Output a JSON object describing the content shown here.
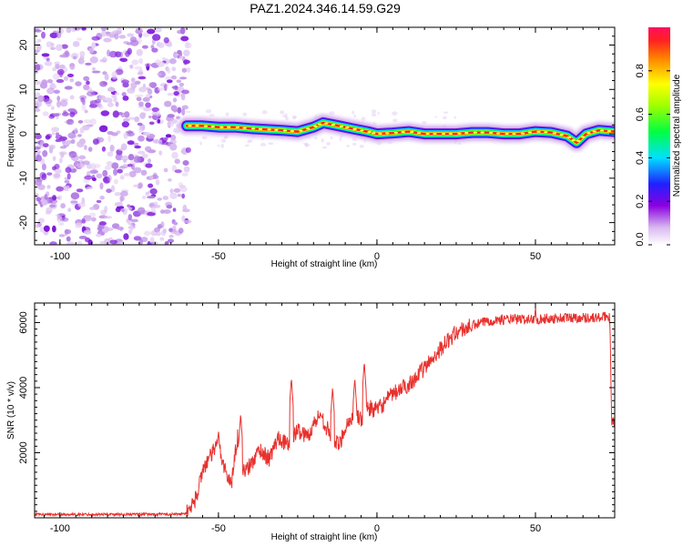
{
  "title": "PAZ1.2024.346.14.59.G29",
  "chart_data": [
    {
      "type": "heatmap",
      "title": "PAZ1.2024.346.14.59.G29",
      "xlabel": "Height of straight line (km)",
      "ylabel": "Frequency (Hz)",
      "xlim": [
        -108,
        75
      ],
      "ylim": [
        -25,
        24
      ],
      "xticks": [
        -100,
        -50,
        0,
        50
      ],
      "yticks": [
        -20,
        -10,
        0,
        10,
        20
      ],
      "noise_region_x": [
        -108,
        -60
      ],
      "signal_start_x": -60,
      "ridge": [
        {
          "x": -60,
          "y": 1.8
        },
        {
          "x": -55,
          "y": 1.8
        },
        {
          "x": -50,
          "y": 1.5
        },
        {
          "x": -45,
          "y": 1.5
        },
        {
          "x": -40,
          "y": 1.2
        },
        {
          "x": -35,
          "y": 1.0
        },
        {
          "x": -30,
          "y": 0.8
        },
        {
          "x": -25,
          "y": 0.5
        },
        {
          "x": -20,
          "y": 1.5
        },
        {
          "x": -17,
          "y": 2.5
        },
        {
          "x": -12,
          "y": 1.8
        },
        {
          "x": -8,
          "y": 1.2
        },
        {
          "x": -3,
          "y": 0.5
        },
        {
          "x": 0,
          "y": 0.0
        },
        {
          "x": 5,
          "y": 0.2
        },
        {
          "x": 10,
          "y": 0.5
        },
        {
          "x": 15,
          "y": 0.0
        },
        {
          "x": 20,
          "y": 0.0
        },
        {
          "x": 25,
          "y": 0.0
        },
        {
          "x": 30,
          "y": 0.3
        },
        {
          "x": 35,
          "y": 0.3
        },
        {
          "x": 40,
          "y": 0.0
        },
        {
          "x": 45,
          "y": 0.0
        },
        {
          "x": 50,
          "y": 0.5
        },
        {
          "x": 55,
          "y": 0.3
        },
        {
          "x": 60,
          "y": -0.5
        },
        {
          "x": 63,
          "y": -2.0
        },
        {
          "x": 66,
          "y": 0.0
        },
        {
          "x": 70,
          "y": 0.8
        },
        {
          "x": 75,
          "y": 0.5
        }
      ],
      "colorbar": {
        "label": "Normalized spectral amplitude",
        "ticks": [
          0.0,
          0.2,
          0.4,
          0.6,
          0.8
        ],
        "tick_labels": [
          "0.0",
          "0.2",
          "0.4",
          "0.6",
          "0.8"
        ],
        "range": [
          0,
          1
        ]
      }
    },
    {
      "type": "line",
      "xlabel": "Height of straight line (km)",
      "ylabel": "SNR (10 * v/v)",
      "xlim": [
        -108,
        75
      ],
      "ylim": [
        0,
        6600
      ],
      "xticks": [
        -100,
        -50,
        0,
        50
      ],
      "yticks": [
        2000,
        4000,
        6000
      ],
      "line_color": "#e8312e",
      "trend": [
        {
          "x": -108,
          "y": 100
        },
        {
          "x": -62,
          "y": 110
        },
        {
          "x": -60,
          "y": 150
        },
        {
          "x": -57,
          "y": 600
        },
        {
          "x": -55,
          "y": 1500
        },
        {
          "x": -53,
          "y": 1800
        },
        {
          "x": -50,
          "y": 2300
        },
        {
          "x": -48,
          "y": 1500
        },
        {
          "x": -46,
          "y": 1000
        },
        {
          "x": -44,
          "y": 2500
        },
        {
          "x": -42,
          "y": 1400
        },
        {
          "x": -40,
          "y": 1600
        },
        {
          "x": -37,
          "y": 2100
        },
        {
          "x": -34,
          "y": 1800
        },
        {
          "x": -31,
          "y": 2500
        },
        {
          "x": -28,
          "y": 2200
        },
        {
          "x": -25,
          "y": 2700
        },
        {
          "x": -22,
          "y": 2500
        },
        {
          "x": -18,
          "y": 3200
        },
        {
          "x": -15,
          "y": 2600
        },
        {
          "x": -12,
          "y": 2200
        },
        {
          "x": -10,
          "y": 2800
        },
        {
          "x": -7,
          "y": 3200
        },
        {
          "x": -5,
          "y": 3000
        },
        {
          "x": -3,
          "y": 3400
        },
        {
          "x": 0,
          "y": 3300
        },
        {
          "x": 5,
          "y": 3800
        },
        {
          "x": 10,
          "y": 4100
        },
        {
          "x": 15,
          "y": 4600
        },
        {
          "x": 20,
          "y": 5200
        },
        {
          "x": 25,
          "y": 5700
        },
        {
          "x": 30,
          "y": 5900
        },
        {
          "x": 35,
          "y": 6050
        },
        {
          "x": 40,
          "y": 6100
        },
        {
          "x": 50,
          "y": 6100
        },
        {
          "x": 60,
          "y": 6150
        },
        {
          "x": 70,
          "y": 6150
        },
        {
          "x": 73.5,
          "y": 6200
        },
        {
          "x": 74,
          "y": 3000
        },
        {
          "x": 75,
          "y": 2950
        }
      ],
      "spikes": [
        {
          "x": -50,
          "y": 2700
        },
        {
          "x": -43,
          "y": 3200
        },
        {
          "x": -27,
          "y": 4300
        },
        {
          "x": -14,
          "y": 4000
        },
        {
          "x": -7,
          "y": 4300
        },
        {
          "x": -4,
          "y": 4800
        },
        {
          "x": 50,
          "y": 6500
        }
      ]
    }
  ]
}
